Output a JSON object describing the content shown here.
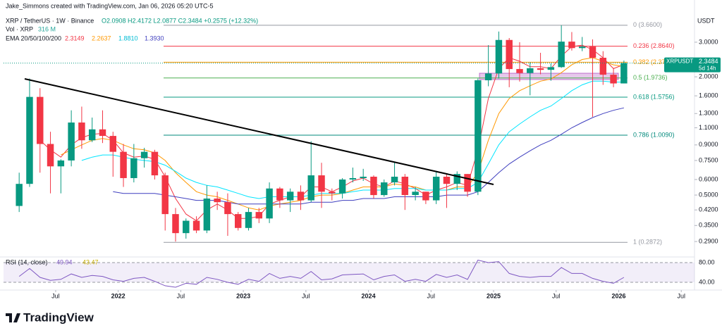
{
  "header": {
    "credit": "Jake_Simmons created with TradingView.com, Jan 06, 2026 05:20 UTC-5",
    "symbol": "XRP / TetherUS · 1W · Binance",
    "ohlc": "O2.0908 H2.4172 L2.0877 C2.3484 +0.2575 (+12.32%)",
    "volume_label": "Vol · XRP",
    "volume_value": "316 M",
    "ema_label": "EMA 20/50/100/200",
    "ema_values": [
      "2.3149",
      "2.2637",
      "1.8810",
      "1.3930"
    ],
    "rsi_label": "RSI (14, close)",
    "rsi_values": [
      "49.94",
      "43.47"
    ],
    "currency": "USDT",
    "tag_symbol": "XRPUSDT",
    "tag_countdown": "5d 14h",
    "logo": "TradingView"
  },
  "chart_data": [
    {
      "type": "candlestick",
      "log_scale": true,
      "up_color": "#089981",
      "down_color": "#f23645",
      "x": [
        "2021-03",
        "2021-04",
        "2021-05",
        "2021-06",
        "2021-07",
        "2021-08",
        "2021-09",
        "2021-10",
        "2021-11",
        "2021-12",
        "2022-01",
        "2022-02",
        "2022-03",
        "2022-04",
        "2022-05",
        "2022-06",
        "2022-07",
        "2022-08",
        "2022-09",
        "2022-10",
        "2022-11",
        "2022-12",
        "2023-01",
        "2023-02",
        "2023-03",
        "2023-04",
        "2023-05",
        "2023-06",
        "2023-07",
        "2023-08",
        "2023-09",
        "2023-10",
        "2023-11",
        "2023-12",
        "2024-01",
        "2024-02",
        "2024-03",
        "2024-04",
        "2024-05",
        "2024-06",
        "2024-07",
        "2024-08",
        "2024-09",
        "2024-10",
        "2024-11",
        "2024-12",
        "2025-01",
        "2025-02",
        "2025-03",
        "2025-04",
        "2025-05",
        "2025-06",
        "2025-07",
        "2025-08",
        "2025-09",
        "2025-10",
        "2025-11",
        "2025-12",
        "2026-01"
      ],
      "open": [
        0.44,
        0.57,
        1.58,
        0.91,
        0.7,
        0.75,
        1.17,
        0.95,
        1.08,
        1.0,
        0.83,
        0.61,
        0.77,
        0.83,
        0.63,
        0.4,
        0.32,
        0.37,
        0.33,
        0.48,
        0.46,
        0.4,
        0.34,
        0.41,
        0.38,
        0.54,
        0.47,
        0.52,
        0.47,
        0.63,
        0.52,
        0.51,
        0.6,
        0.61,
        0.62,
        0.5,
        0.58,
        0.62,
        0.5,
        0.52,
        0.47,
        0.62,
        0.57,
        0.64,
        0.52,
        1.92,
        2.08,
        3.08,
        2.19,
        2.09,
        2.21,
        2.17,
        2.24,
        3.02,
        2.8,
        2.85,
        2.5,
        2.05,
        1.85
      ],
      "high": [
        0.65,
        1.96,
        1.75,
        1.05,
        0.76,
        1.35,
        1.41,
        1.24,
        1.35,
        1.05,
        0.91,
        0.91,
        0.87,
        0.85,
        0.65,
        0.43,
        0.38,
        0.39,
        0.56,
        0.52,
        0.51,
        0.41,
        0.43,
        0.43,
        0.58,
        0.55,
        0.54,
        0.56,
        0.94,
        0.73,
        0.54,
        0.61,
        0.69,
        0.68,
        0.63,
        0.6,
        0.74,
        0.64,
        0.55,
        0.52,
        0.66,
        0.64,
        0.66,
        0.64,
        1.96,
        2.9,
        3.4,
        3.15,
        3.0,
        2.37,
        2.65,
        2.34,
        3.66,
        3.38,
        3.19,
        3.1,
        2.7,
        2.22,
        2.42
      ],
      "low": [
        0.41,
        0.55,
        0.65,
        0.51,
        0.51,
        0.7,
        0.86,
        0.93,
        0.92,
        0.62,
        0.55,
        0.58,
        0.69,
        0.6,
        0.33,
        0.29,
        0.3,
        0.32,
        0.32,
        0.42,
        0.31,
        0.33,
        0.33,
        0.36,
        0.36,
        0.43,
        0.41,
        0.42,
        0.46,
        0.43,
        0.47,
        0.48,
        0.58,
        0.59,
        0.48,
        0.49,
        0.56,
        0.42,
        0.47,
        0.45,
        0.45,
        0.43,
        0.53,
        0.49,
        0.5,
        1.79,
        1.96,
        1.77,
        1.89,
        1.61,
        2.06,
        1.91,
        2.22,
        2.72,
        2.7,
        1.25,
        1.82,
        1.77,
        1.85
      ],
      "close": [
        0.57,
        1.58,
        0.91,
        0.7,
        0.75,
        1.17,
        0.95,
        1.08,
        1.0,
        0.83,
        0.61,
        0.77,
        0.83,
        0.63,
        0.4,
        0.32,
        0.37,
        0.33,
        0.48,
        0.46,
        0.4,
        0.34,
        0.41,
        0.38,
        0.54,
        0.47,
        0.52,
        0.47,
        0.63,
        0.52,
        0.51,
        0.6,
        0.61,
        0.62,
        0.5,
        0.58,
        0.62,
        0.5,
        0.52,
        0.47,
        0.62,
        0.57,
        0.64,
        0.52,
        1.92,
        2.08,
        3.08,
        2.19,
        2.09,
        2.21,
        2.17,
        2.24,
        3.02,
        2.8,
        2.85,
        2.5,
        2.05,
        1.85,
        2.35
      ],
      "series": [
        {
          "color": "#f23645",
          "values": [
            null,
            null,
            0.95,
            0.85,
            0.78,
            0.9,
            0.98,
            1.02,
            1.03,
            0.95,
            0.82,
            0.78,
            0.79,
            0.76,
            0.62,
            0.48,
            0.4,
            0.37,
            0.42,
            0.45,
            0.42,
            0.38,
            0.38,
            0.39,
            0.45,
            0.47,
            0.49,
            0.49,
            0.55,
            0.55,
            0.52,
            0.55,
            0.59,
            0.61,
            0.57,
            0.55,
            0.59,
            0.57,
            0.54,
            0.5,
            0.53,
            0.55,
            0.58,
            0.56,
            0.85,
            1.55,
            2.2,
            2.5,
            2.4,
            2.25,
            2.25,
            2.2,
            2.55,
            2.85,
            2.9,
            2.75,
            2.5,
            2.2,
            2.31
          ]
        },
        {
          "color": "#ff9800",
          "values": [
            null,
            null,
            null,
            null,
            0.8,
            0.85,
            0.9,
            0.95,
            0.97,
            0.95,
            0.9,
            0.86,
            0.85,
            0.82,
            0.75,
            0.65,
            0.58,
            0.52,
            0.5,
            0.49,
            0.47,
            0.45,
            0.43,
            0.42,
            0.44,
            0.45,
            0.46,
            0.47,
            0.49,
            0.5,
            0.5,
            0.51,
            0.53,
            0.55,
            0.55,
            0.55,
            0.57,
            0.56,
            0.55,
            0.53,
            0.53,
            0.53,
            0.55,
            0.55,
            0.65,
            0.95,
            1.3,
            1.55,
            1.7,
            1.8,
            1.9,
            1.95,
            2.1,
            2.3,
            2.45,
            2.5,
            2.4,
            2.3,
            2.26
          ]
        },
        {
          "color": "#00e5ff",
          "values": [
            null,
            null,
            null,
            null,
            null,
            null,
            0.75,
            0.78,
            0.8,
            0.8,
            0.78,
            0.76,
            0.75,
            0.74,
            0.71,
            0.66,
            0.61,
            0.58,
            0.56,
            0.55,
            0.53,
            0.51,
            0.49,
            0.48,
            0.49,
            0.49,
            0.49,
            0.49,
            0.5,
            0.51,
            0.51,
            0.51,
            0.52,
            0.53,
            0.53,
            0.53,
            0.54,
            0.54,
            0.54,
            0.53,
            0.53,
            0.53,
            0.54,
            0.54,
            0.58,
            0.72,
            0.9,
            1.05,
            1.15,
            1.25,
            1.35,
            1.42,
            1.55,
            1.7,
            1.82,
            1.9,
            1.9,
            1.88,
            1.88
          ]
        },
        {
          "color": "#3f3fbf",
          "values": [
            null,
            null,
            null,
            null,
            null,
            null,
            null,
            null,
            null,
            0.52,
            0.51,
            0.51,
            0.51,
            0.51,
            0.5,
            0.49,
            0.48,
            0.47,
            0.47,
            0.47,
            0.46,
            0.45,
            0.45,
            0.45,
            0.45,
            0.45,
            0.45,
            0.45,
            0.46,
            0.46,
            0.46,
            0.47,
            0.47,
            0.48,
            0.48,
            0.48,
            0.49,
            0.49,
            0.49,
            0.49,
            0.49,
            0.5,
            0.5,
            0.5,
            0.52,
            0.58,
            0.65,
            0.72,
            0.78,
            0.84,
            0.9,
            0.95,
            1.02,
            1.1,
            1.17,
            1.24,
            1.3,
            1.35,
            1.39
          ]
        }
      ],
      "fib": [
        {
          "label": "0 (3.6600)",
          "value": 3.66,
          "color": "#9598a1"
        },
        {
          "label": "0.236 (2.8640)",
          "value": 2.864,
          "color": "#f23645"
        },
        {
          "label": "0.382 (2.37",
          "value": 2.372,
          "color": "#ff9800"
        },
        {
          "label": "0.5 (1.9736)",
          "value": 1.9736,
          "color": "#4caf50"
        },
        {
          "label": "0.618 (1.5756)",
          "value": 1.5756,
          "color": "#089981"
        },
        {
          "label": "0.786 (1.0090)",
          "value": 1.009,
          "color": "#00897b"
        },
        {
          "label": "1 (0.2872)",
          "value": 0.2872,
          "color": "#9598a1"
        }
      ],
      "last_price": 2.3484,
      "ylim": [
        0.242,
        4.92
      ],
      "yticks": [
        {
          "value": 3,
          "label": "3.0000"
        },
        {
          "value": 2,
          "label": "2.0000"
        },
        {
          "value": 1.6,
          "label": "1.6000"
        },
        {
          "value": 1.3,
          "label": "1.3000"
        },
        {
          "value": 1.1,
          "label": "1.1000"
        },
        {
          "value": 0.9,
          "label": "0.9000"
        },
        {
          "value": 0.75,
          "label": "0.7500"
        },
        {
          "value": 0.6,
          "label": "0.6000"
        },
        {
          "value": 0.5,
          "label": "0.5000"
        },
        {
          "value": 0.42,
          "label": "0.4200"
        },
        {
          "value": 0.35,
          "label": "0.3500"
        },
        {
          "value": 0.29,
          "label": "0.2900"
        }
      ],
      "xlim": [
        "2021-02",
        "2026-08"
      ],
      "xticks": [
        {
          "value": "2021-07",
          "label": "Jul"
        },
        {
          "value": "2022-01",
          "label": "2022"
        },
        {
          "value": "2022-07",
          "label": "Jul"
        },
        {
          "value": "2023-01",
          "label": "2023"
        },
        {
          "value": "2023-07",
          "label": "Jul"
        },
        {
          "value": "2024-01",
          "label": "2024"
        },
        {
          "value": "2024-07",
          "label": "Jul"
        },
        {
          "value": "2025-01",
          "label": "2025"
        },
        {
          "value": "2025-07",
          "label": "Jul"
        },
        {
          "value": "2026-01",
          "label": "2026"
        },
        {
          "value": "2026-07",
          "label": "Jul"
        }
      ]
    },
    {
      "type": "line",
      "color": "#7e57c2",
      "band_color": "#7e57c2",
      "x": [
        "2021-03",
        "2021-04",
        "2021-05",
        "2021-06",
        "2021-07",
        "2021-08",
        "2021-09",
        "2021-10",
        "2021-11",
        "2021-12",
        "2022-01",
        "2022-02",
        "2022-03",
        "2022-04",
        "2022-05",
        "2022-06",
        "2022-07",
        "2022-08",
        "2022-09",
        "2022-10",
        "2022-11",
        "2022-12",
        "2023-01",
        "2023-02",
        "2023-03",
        "2023-04",
        "2023-05",
        "2023-06",
        "2023-07",
        "2023-08",
        "2023-09",
        "2023-10",
        "2023-11",
        "2023-12",
        "2024-01",
        "2024-02",
        "2024-03",
        "2024-04",
        "2024-05",
        "2024-06",
        "2024-07",
        "2024-08",
        "2024-09",
        "2024-10",
        "2024-11",
        "2024-12",
        "2025-01",
        "2025-02",
        "2025-03",
        "2025-04",
        "2025-05",
        "2025-06",
        "2025-07",
        "2025-08",
        "2025-09",
        "2025-10",
        "2025-11",
        "2025-12",
        "2026-01"
      ],
      "values": [
        52,
        68,
        50,
        44,
        46,
        57,
        50,
        54,
        52,
        45,
        42,
        48,
        50,
        42,
        33,
        30,
        38,
        36,
        50,
        46,
        40,
        36,
        46,
        42,
        58,
        48,
        52,
        48,
        62,
        45,
        47,
        55,
        56,
        57,
        45,
        52,
        55,
        42,
        46,
        42,
        56,
        50,
        55,
        46,
        85,
        80,
        82,
        58,
        52,
        50,
        52,
        52,
        70,
        58,
        58,
        48,
        42,
        38,
        49.94
      ],
      "ylim": [
        24.3,
        91.4
      ],
      "yticks": [
        {
          "value": 80,
          "label": "80.00"
        },
        {
          "value": 40,
          "label": "40.00"
        }
      ]
    }
  ]
}
